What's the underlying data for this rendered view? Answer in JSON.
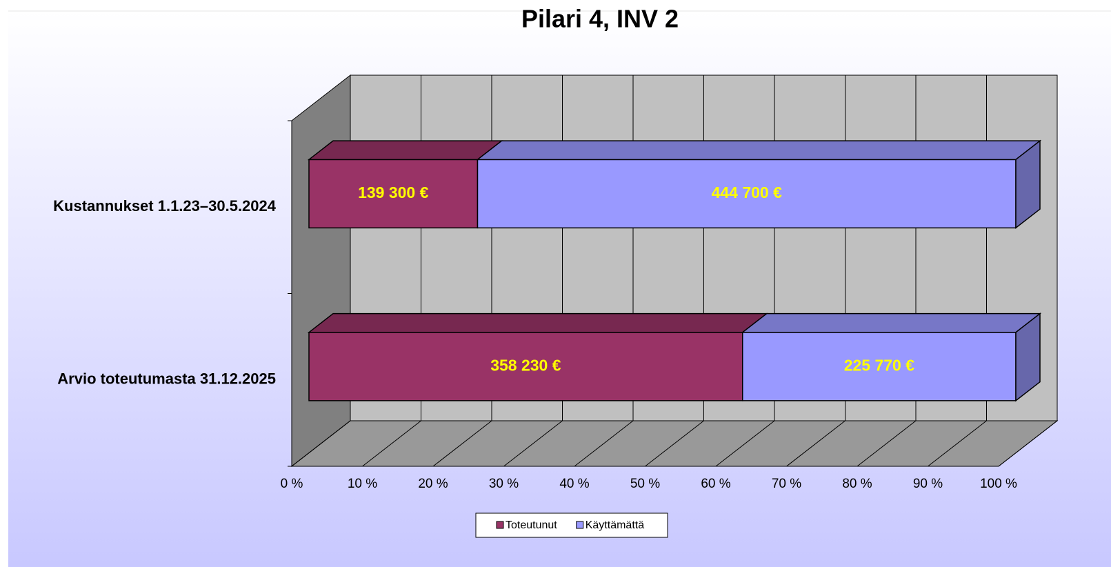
{
  "chart_data": {
    "type": "bar3d",
    "orientation": "horizontal",
    "stacking": "percent",
    "title": "Pilari 4, INV 2",
    "categories": [
      "Kustannukset 1.1.23–30.5.2024",
      "Arvio toteutumasta 31.12.2025"
    ],
    "series": [
      {
        "name": "Toteutunut",
        "color": "#993366",
        "values": [
          139300,
          358230
        ],
        "value_labels": [
          "139 300 €",
          "358 230 €"
        ]
      },
      {
        "name": "Käyttämättä",
        "color": "#9999ff",
        "values": [
          444700,
          225770
        ],
        "value_labels": [
          "444 700 €",
          "225 770 €"
        ]
      }
    ],
    "xlim": [
      0,
      100
    ],
    "xticks": [
      {
        "value": 0,
        "label": "0 %"
      },
      {
        "value": 10,
        "label": "10 %"
      },
      {
        "value": 20,
        "label": "20 %"
      },
      {
        "value": 30,
        "label": "30 %"
      },
      {
        "value": 40,
        "label": "40 %"
      },
      {
        "value": 50,
        "label": "50 %"
      },
      {
        "value": 60,
        "label": "60 %"
      },
      {
        "value": 70,
        "label": "70 %"
      },
      {
        "value": 80,
        "label": "80 %"
      },
      {
        "value": 90,
        "label": "90 %"
      },
      {
        "value": 100,
        "label": "100 %"
      }
    ],
    "grid": true,
    "legend": "bottom"
  }
}
